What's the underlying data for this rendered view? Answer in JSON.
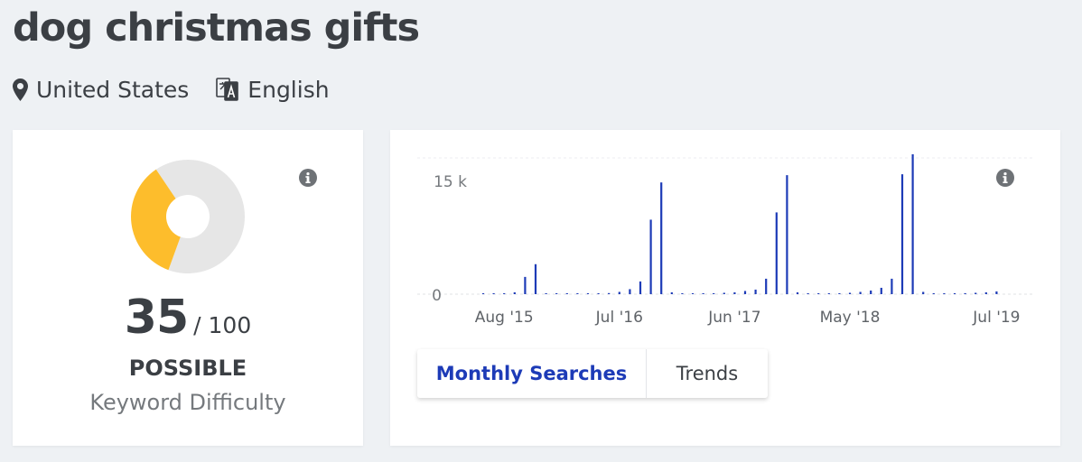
{
  "page": {
    "keyword": "dog christmas gifts",
    "location": "United States",
    "language": "English"
  },
  "difficulty": {
    "score": "35",
    "max": "/ 100",
    "rating": "POSSIBLE",
    "label": "Keyword Difficulty",
    "value": 35,
    "colors": {
      "filled": "#fdbd2c",
      "empty": "#e6e6e6"
    }
  },
  "chart_data": {
    "type": "bar",
    "title": "",
    "xlabel": "",
    "ylabel": "",
    "ylim": [
      0,
      15000
    ],
    "grid": true,
    "color": "#1d3bb7",
    "y_ticks": [
      {
        "value": 0,
        "label": "0"
      },
      {
        "value": 15000,
        "label": "15 k"
      }
    ],
    "x_ticks": [
      {
        "index": 2,
        "label": "Aug '15"
      },
      {
        "index": 13,
        "label": "Jul '16"
      },
      {
        "index": 24,
        "label": "Jun '17"
      },
      {
        "index": 35,
        "label": "May '18"
      },
      {
        "index": 49,
        "label": "Jul '19"
      }
    ],
    "categories": [
      "Jun '15",
      "Jul '15",
      "Aug '15",
      "Sep '15",
      "Oct '15",
      "Nov '15",
      "Dec '15",
      "Jan '16",
      "Feb '16",
      "Mar '16",
      "Apr '16",
      "May '16",
      "Jun '16",
      "Jul '16",
      "Aug '16",
      "Sep '16",
      "Oct '16",
      "Nov '16",
      "Dec '16",
      "Jan '17",
      "Feb '17",
      "Mar '17",
      "Apr '17",
      "May '17",
      "Jun '17",
      "Jul '17",
      "Aug '17",
      "Sep '17",
      "Oct '17",
      "Nov '17",
      "Dec '17",
      "Jan '18",
      "Feb '18",
      "Mar '18",
      "Apr '18",
      "May '18",
      "Jun '18",
      "Jul '18",
      "Aug '18",
      "Sep '18",
      "Oct '18",
      "Nov '18",
      "Dec '18",
      "Jan '19",
      "Feb '19",
      "Mar '19",
      "Apr '19",
      "May '19",
      "Jun '19",
      "Jul '19"
    ],
    "values": [
      30,
      40,
      100,
      200,
      1900,
      3300,
      100,
      0,
      0,
      20,
      40,
      50,
      120,
      250,
      550,
      1400,
      8200,
      12300,
      200,
      30,
      40,
      60,
      100,
      150,
      200,
      350,
      500,
      1700,
      9000,
      13100,
      200,
      40,
      50,
      70,
      100,
      150,
      250,
      400,
      700,
      1700,
      13200,
      15400,
      250,
      50,
      60,
      80,
      110,
      150,
      200,
      300
    ]
  }
}
